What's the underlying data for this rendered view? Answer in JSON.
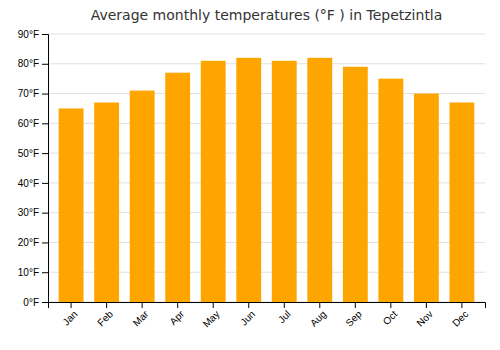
{
  "chart_data": {
    "type": "bar",
    "title": "Average monthly temperatures (°F ) in Tepetzintla",
    "categories": [
      "Jan",
      "Feb",
      "Mar",
      "Apr",
      "May",
      "Jun",
      "Jul",
      "Aug",
      "Sep",
      "Oct",
      "Nov",
      "Dec"
    ],
    "values": [
      65,
      67,
      71,
      77,
      81,
      82,
      81,
      82,
      79,
      75,
      70,
      67
    ],
    "color": "#FFA500",
    "ylim": [
      0,
      90
    ],
    "yticks": [
      {
        "value": 0,
        "label": "0°F"
      },
      {
        "value": 10,
        "label": "10°F"
      },
      {
        "value": 20,
        "label": "20°F"
      },
      {
        "value": 30,
        "label": "30°F"
      },
      {
        "value": 40,
        "label": "40°F"
      },
      {
        "value": 50,
        "label": "50°F"
      },
      {
        "value": 60,
        "label": "60°F"
      },
      {
        "value": 70,
        "label": "70°F"
      },
      {
        "value": 80,
        "label": "80°F"
      },
      {
        "value": 90,
        "label": "90°F"
      }
    ],
    "grid": true
  }
}
